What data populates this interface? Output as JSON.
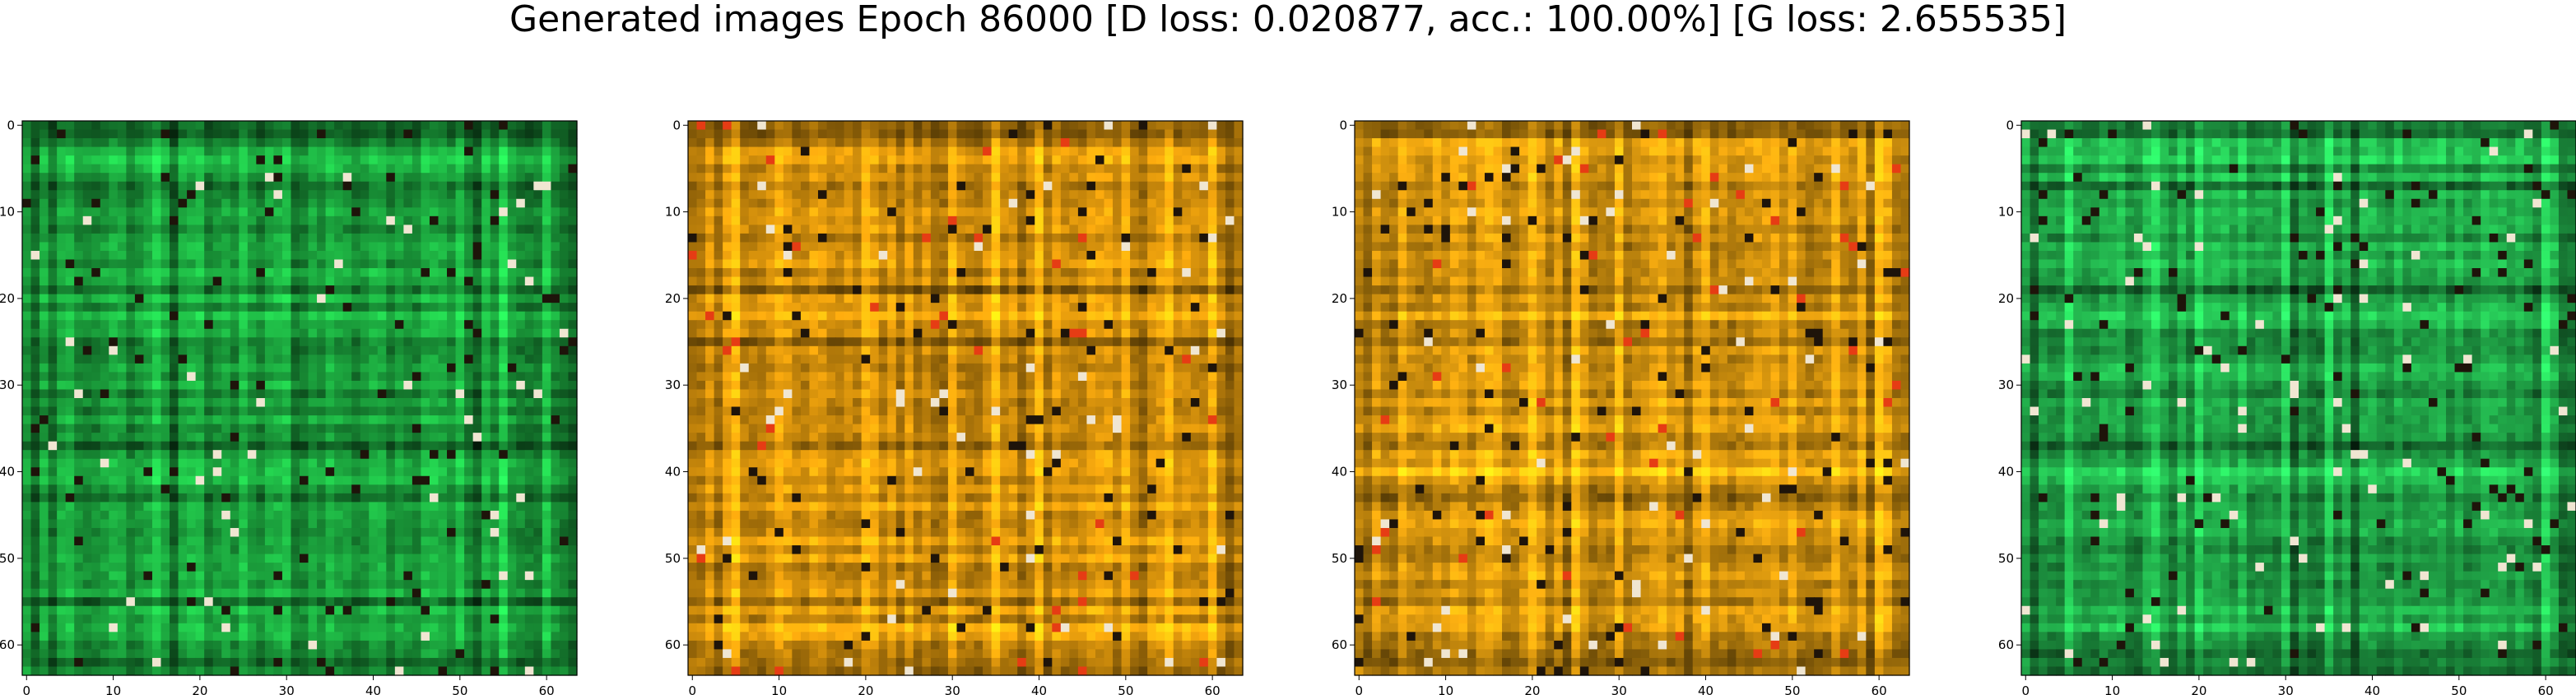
{
  "figure": {
    "suptitle": "Generated images Epoch 86000 [D loss: 0.020877, acc.: 100.00%] [G loss: 2.655535]"
  },
  "chart_data": [
    {
      "type": "heatmap",
      "name": "generated-image-1",
      "colormap": "green",
      "base_color": "#1a9a3a",
      "image_shape": [
        64,
        64,
        3
      ],
      "xlim": [
        -0.5,
        63.5
      ],
      "ylim": [
        63.5,
        -0.5
      ],
      "xticks": [
        0,
        10,
        20,
        30,
        40,
        50,
        60
      ],
      "yticks": [
        0,
        10,
        20,
        30,
        40,
        50,
        60
      ]
    },
    {
      "type": "heatmap",
      "name": "generated-image-2",
      "colormap": "orange",
      "base_color": "#d4900c",
      "image_shape": [
        64,
        64,
        3
      ],
      "xlim": [
        -0.5,
        63.5
      ],
      "ylim": [
        63.5,
        -0.5
      ],
      "xticks": [
        0,
        10,
        20,
        30,
        40,
        50,
        60
      ],
      "yticks": [
        0,
        10,
        20,
        30,
        40,
        50,
        60
      ]
    },
    {
      "type": "heatmap",
      "name": "generated-image-3",
      "colormap": "orange",
      "base_color": "#cf900e",
      "image_shape": [
        64,
        64,
        3
      ],
      "xlim": [
        -0.5,
        63.5
      ],
      "ylim": [
        63.5,
        -0.5
      ],
      "xticks": [
        0,
        10,
        20,
        30,
        40,
        50,
        60
      ],
      "yticks": [
        0,
        10,
        20,
        30,
        40,
        50,
        60
      ]
    },
    {
      "type": "heatmap",
      "name": "generated-image-4",
      "colormap": "green",
      "base_color": "#1f9f45",
      "image_shape": [
        64,
        64,
        3
      ],
      "xlim": [
        -0.5,
        63.5
      ],
      "ylim": [
        63.5,
        -0.5
      ],
      "xticks": [
        0,
        10,
        20,
        30,
        40,
        50,
        60
      ],
      "yticks": [
        0,
        10,
        20,
        30,
        40,
        50,
        60
      ]
    }
  ]
}
